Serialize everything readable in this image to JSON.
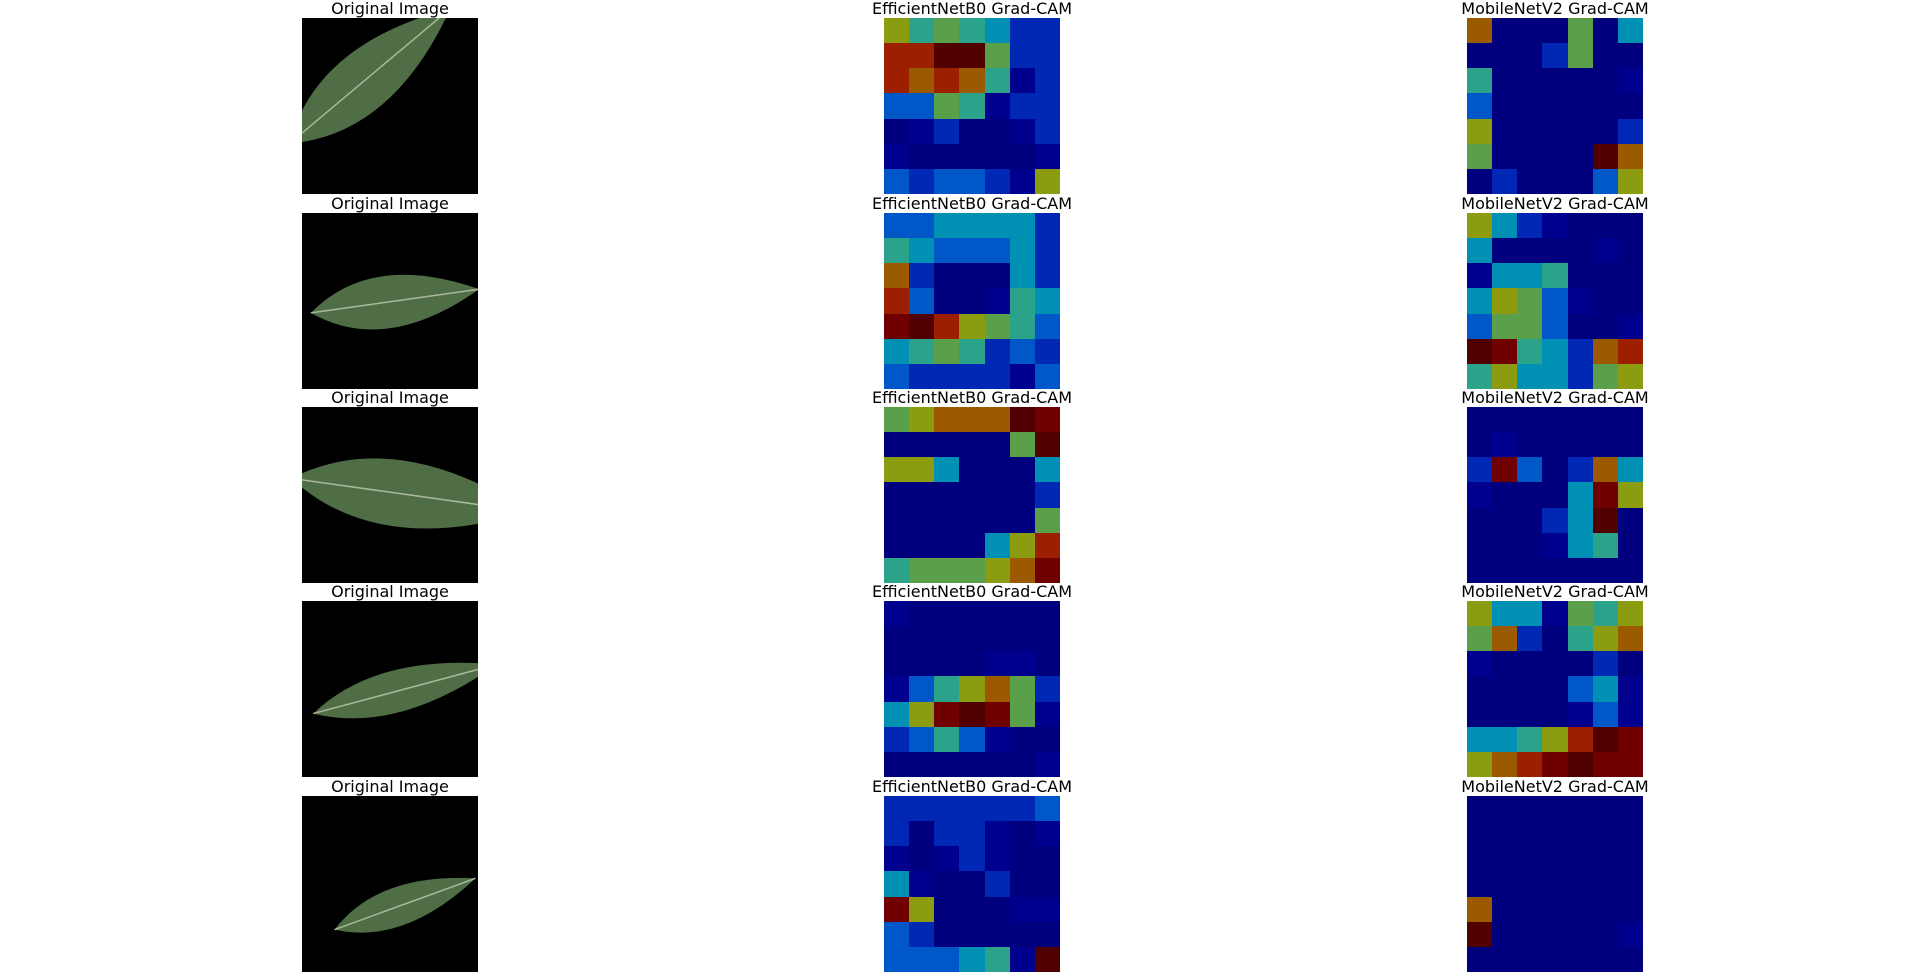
{
  "columns": [
    {
      "title": "Original Image"
    },
    {
      "title": "EfficientNetB0 Grad-CAM"
    },
    {
      "title": "MobileNetV2 Grad-CAM"
    }
  ],
  "colormap": {
    "0": "#00007f",
    "1": "#00008f",
    "2": "#0028b4",
    "3": "#0058c8",
    "4": "#0090b4",
    "5": "#2aa38a",
    "6": "#5aa04a",
    "7": "#8c9c10",
    "8": "#9c5a00",
    "9": "#9c2000",
    "10": "#700000",
    "11": "#500000"
  },
  "leaf": {
    "color": "#4f6e45",
    "vein": "#a9b99b"
  },
  "rows": [
    {
      "efficientnet": [
        [
          7,
          5,
          6,
          5,
          4,
          2,
          2
        ],
        [
          9,
          9,
          11,
          11,
          6,
          2,
          2
        ],
        [
          9,
          8,
          9,
          8,
          5,
          1,
          2
        ],
        [
          3,
          3,
          6,
          5,
          1,
          2,
          2
        ],
        [
          0,
          1,
          2,
          0,
          0,
          1,
          2
        ],
        [
          1,
          0,
          0,
          0,
          0,
          0,
          1
        ],
        [
          3,
          2,
          3,
          3,
          2,
          1,
          7
        ]
      ],
      "mobilenet": [
        [
          8,
          0,
          0,
          0,
          6,
          0,
          4
        ],
        [
          0,
          0,
          0,
          2,
          6,
          0,
          0
        ],
        [
          5,
          0,
          0,
          0,
          0,
          0,
          1
        ],
        [
          3,
          0,
          0,
          0,
          0,
          0,
          0
        ],
        [
          7,
          0,
          0,
          0,
          0,
          0,
          2
        ],
        [
          6,
          0,
          0,
          0,
          0,
          11,
          8
        ],
        [
          0,
          2,
          0,
          0,
          0,
          3,
          7
        ]
      ]
    },
    {
      "efficientnet": [
        [
          3,
          3,
          4,
          4,
          4,
          4,
          2
        ],
        [
          5,
          4,
          3,
          3,
          3,
          4,
          2
        ],
        [
          8,
          2,
          0,
          0,
          0,
          4,
          2
        ],
        [
          9,
          3,
          0,
          0,
          1,
          5,
          4
        ],
        [
          10,
          11,
          9,
          7,
          6,
          5,
          3
        ],
        [
          4,
          5,
          6,
          5,
          2,
          3,
          2
        ],
        [
          3,
          2,
          2,
          2,
          2,
          1,
          3
        ]
      ],
      "mobilenet": [
        [
          7,
          4,
          2,
          1,
          0,
          0,
          0
        ],
        [
          4,
          0,
          0,
          0,
          0,
          1,
          0
        ],
        [
          1,
          4,
          4,
          5,
          0,
          0,
          0
        ],
        [
          4,
          7,
          6,
          3,
          1,
          0,
          0
        ],
        [
          3,
          6,
          6,
          3,
          0,
          0,
          1
        ],
        [
          11,
          10,
          5,
          4,
          2,
          8,
          9
        ],
        [
          5,
          7,
          4,
          4,
          2,
          6,
          7
        ]
      ]
    },
    {
      "efficientnet": [
        [
          6,
          7,
          8,
          8,
          8,
          11,
          10
        ],
        [
          0,
          0,
          0,
          0,
          0,
          6,
          11
        ],
        [
          7,
          7,
          4,
          0,
          0,
          0,
          4
        ],
        [
          0,
          0,
          0,
          0,
          0,
          0,
          2
        ],
        [
          0,
          0,
          0,
          0,
          0,
          0,
          6
        ],
        [
          0,
          0,
          0,
          0,
          4,
          7,
          9
        ],
        [
          5,
          6,
          6,
          6,
          7,
          8,
          10
        ]
      ],
      "mobilenet": [
        [
          0,
          0,
          0,
          0,
          0,
          0,
          0
        ],
        [
          0,
          1,
          0,
          0,
          0,
          0,
          0
        ],
        [
          2,
          10,
          3,
          0,
          2,
          8,
          4
        ],
        [
          1,
          0,
          0,
          0,
          4,
          10,
          7
        ],
        [
          0,
          0,
          0,
          2,
          4,
          11,
          0
        ],
        [
          0,
          0,
          0,
          1,
          4,
          5,
          0
        ],
        [
          0,
          0,
          0,
          0,
          0,
          0,
          0
        ]
      ]
    },
    {
      "efficientnet": [
        [
          1,
          0,
          0,
          0,
          0,
          0,
          0
        ],
        [
          0,
          0,
          0,
          0,
          0,
          0,
          0
        ],
        [
          0,
          0,
          0,
          0,
          1,
          1,
          0
        ],
        [
          1,
          3,
          5,
          7,
          8,
          6,
          2
        ],
        [
          4,
          7,
          10,
          11,
          10,
          6,
          1
        ],
        [
          2,
          3,
          5,
          3,
          1,
          0,
          0
        ],
        [
          0,
          0,
          0,
          0,
          0,
          0,
          1
        ]
      ],
      "mobilenet": [
        [
          7,
          4,
          4,
          1,
          6,
          5,
          7
        ],
        [
          6,
          8,
          2,
          0,
          5,
          7,
          8
        ],
        [
          1,
          0,
          0,
          0,
          0,
          2,
          0
        ],
        [
          0,
          0,
          0,
          0,
          3,
          4,
          1
        ],
        [
          0,
          0,
          0,
          0,
          1,
          3,
          1
        ],
        [
          4,
          4,
          5,
          7,
          9,
          11,
          10
        ],
        [
          7,
          8,
          9,
          10,
          11,
          10,
          10
        ]
      ]
    },
    {
      "efficientnet": [
        [
          2,
          2,
          2,
          2,
          2,
          2,
          3
        ],
        [
          2,
          0,
          2,
          2,
          1,
          0,
          1
        ],
        [
          1,
          0,
          1,
          2,
          1,
          0,
          0
        ],
        [
          4,
          1,
          0,
          0,
          2,
          0,
          0
        ],
        [
          10,
          7,
          0,
          0,
          0,
          1,
          1
        ],
        [
          3,
          2,
          0,
          0,
          0,
          0,
          0
        ],
        [
          3,
          3,
          3,
          4,
          5,
          1,
          11
        ]
      ],
      "mobilenet": [
        [
          0,
          0,
          0,
          0,
          0,
          0,
          0
        ],
        [
          0,
          0,
          0,
          0,
          0,
          0,
          0
        ],
        [
          0,
          0,
          0,
          0,
          0,
          0,
          0
        ],
        [
          0,
          0,
          0,
          0,
          0,
          0,
          0
        ],
        [
          8,
          0,
          0,
          0,
          0,
          0,
          0
        ],
        [
          11,
          0,
          0,
          0,
          0,
          0,
          1
        ],
        [
          0,
          0,
          0,
          0,
          0,
          0,
          0
        ]
      ]
    }
  ]
}
